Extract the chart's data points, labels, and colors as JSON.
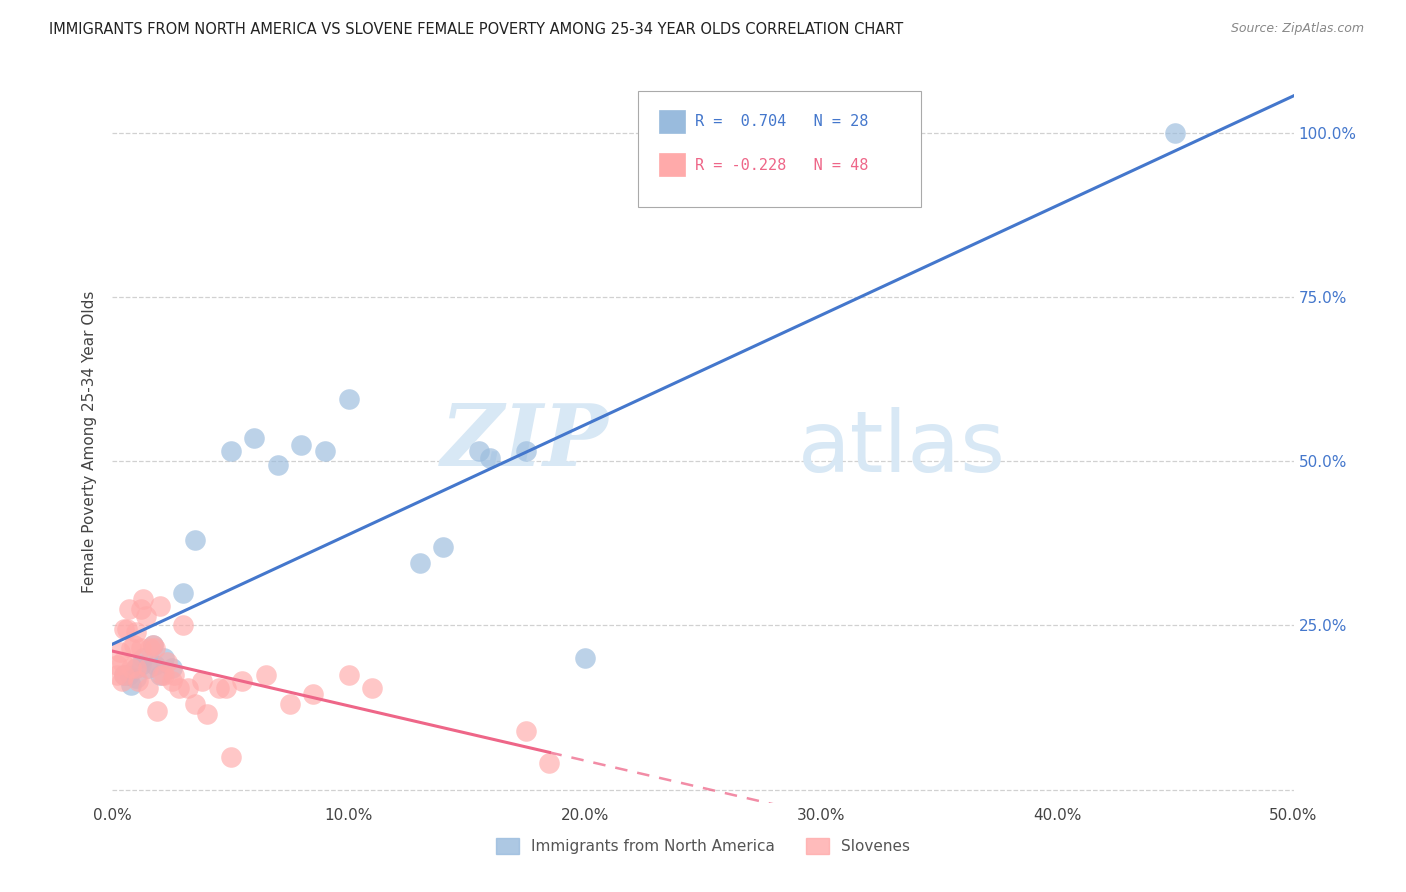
{
  "title": "IMMIGRANTS FROM NORTH AMERICA VS SLOVENE FEMALE POVERTY AMONG 25-34 YEAR OLDS CORRELATION CHART",
  "source": "Source: ZipAtlas.com",
  "ylabel": "Female Poverty Among 25-34 Year Olds",
  "xlim": [
    0,
    0.5
  ],
  "ylim": [
    -0.02,
    1.08
  ],
  "xticks": [
    0.0,
    0.1,
    0.2,
    0.3,
    0.4,
    0.5
  ],
  "yticks": [
    0.0,
    0.25,
    0.5,
    0.75,
    1.0
  ],
  "xticklabels": [
    "0.0%",
    "10.0%",
    "20.0%",
    "30.0%",
    "40.0%",
    "50.0%"
  ],
  "yticklabels_right": [
    "",
    "25.0%",
    "50.0%",
    "75.0%",
    "100.0%"
  ],
  "legend_label1": "Immigrants from North America",
  "legend_label2": "Slovenes",
  "R1": 0.704,
  "N1": 28,
  "R2": -0.228,
  "N2": 48,
  "blue_color": "#99BBDD",
  "pink_color": "#FFAAAA",
  "line_blue": "#4477CC",
  "line_pink": "#EE6688",
  "watermark_zip": "ZIP",
  "watermark_atlas": "atlas",
  "blue_points_x": [
    0.005,
    0.007,
    0.008,
    0.01,
    0.01,
    0.012,
    0.013,
    0.015,
    0.017,
    0.018,
    0.02,
    0.022,
    0.025,
    0.03,
    0.035,
    0.05,
    0.06,
    0.07,
    0.08,
    0.09,
    0.1,
    0.13,
    0.14,
    0.155,
    0.16,
    0.175,
    0.2,
    0.45
  ],
  "blue_points_y": [
    0.175,
    0.175,
    0.16,
    0.185,
    0.17,
    0.19,
    0.2,
    0.185,
    0.22,
    0.19,
    0.175,
    0.2,
    0.185,
    0.3,
    0.38,
    0.515,
    0.535,
    0.495,
    0.525,
    0.515,
    0.595,
    0.345,
    0.37,
    0.515,
    0.505,
    0.515,
    0.2,
    1.0
  ],
  "pink_points_x": [
    0.002,
    0.002,
    0.003,
    0.004,
    0.004,
    0.005,
    0.005,
    0.006,
    0.007,
    0.008,
    0.008,
    0.009,
    0.01,
    0.01,
    0.011,
    0.012,
    0.012,
    0.013,
    0.014,
    0.015,
    0.015,
    0.016,
    0.017,
    0.018,
    0.019,
    0.02,
    0.021,
    0.022,
    0.023,
    0.025,
    0.026,
    0.028,
    0.03,
    0.032,
    0.035,
    0.038,
    0.04,
    0.045,
    0.048,
    0.05,
    0.055,
    0.065,
    0.075,
    0.085,
    0.1,
    0.11,
    0.175,
    0.185
  ],
  "pink_points_y": [
    0.175,
    0.19,
    0.21,
    0.195,
    0.165,
    0.245,
    0.175,
    0.245,
    0.275,
    0.215,
    0.185,
    0.22,
    0.24,
    0.185,
    0.165,
    0.275,
    0.215,
    0.29,
    0.265,
    0.185,
    0.155,
    0.215,
    0.22,
    0.215,
    0.12,
    0.28,
    0.175,
    0.175,
    0.195,
    0.165,
    0.175,
    0.155,
    0.25,
    0.155,
    0.13,
    0.165,
    0.115,
    0.155,
    0.155,
    0.05,
    0.165,
    0.175,
    0.13,
    0.145,
    0.175,
    0.155,
    0.09,
    0.04
  ],
  "background_color": "#ffffff",
  "grid_color": "#CCCCCC"
}
